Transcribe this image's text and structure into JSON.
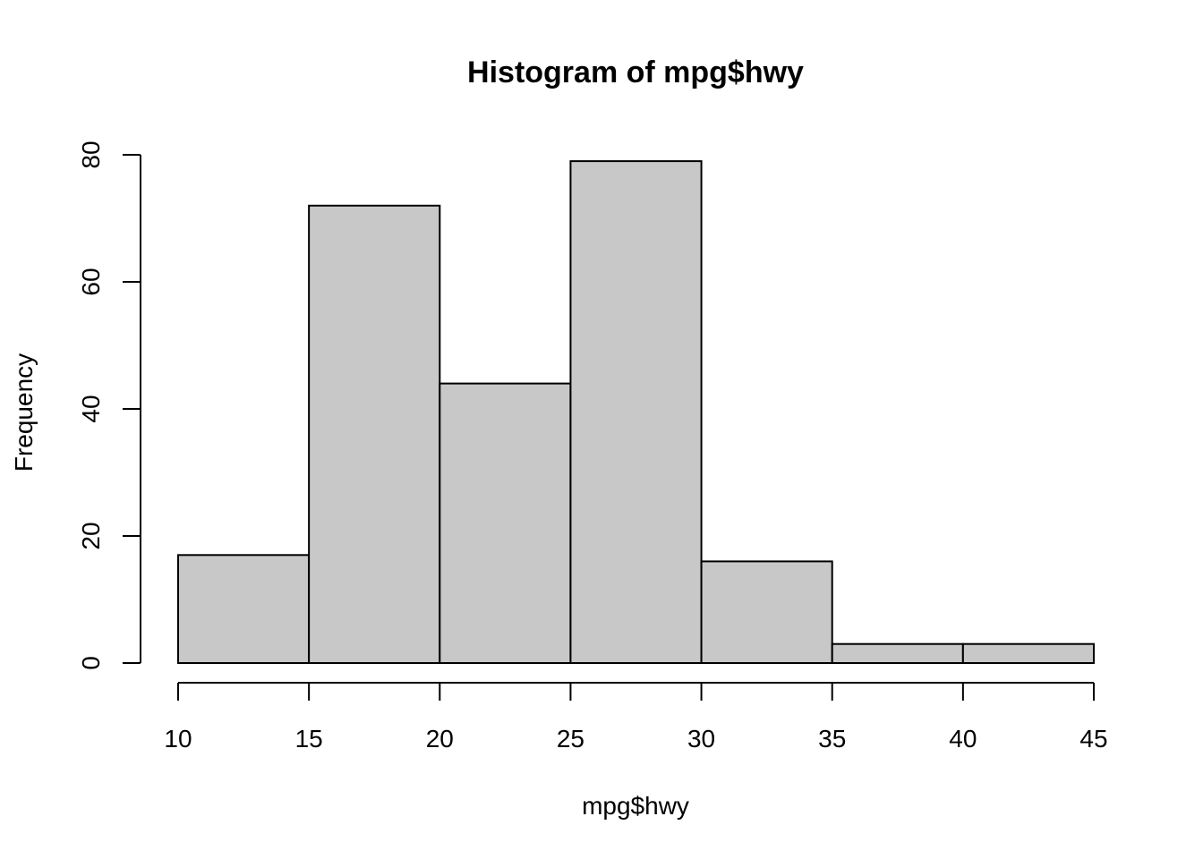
{
  "chart_data": {
    "type": "bar",
    "title": "Histogram of mpg$hwy",
    "xlabel": "mpg$hwy",
    "ylabel": "Frequency",
    "bins": [
      {
        "start": 10,
        "end": 15,
        "value": 17
      },
      {
        "start": 15,
        "end": 20,
        "value": 72
      },
      {
        "start": 20,
        "end": 25,
        "value": 44
      },
      {
        "start": 25,
        "end": 30,
        "value": 79
      },
      {
        "start": 30,
        "end": 35,
        "value": 16
      },
      {
        "start": 35,
        "end": 40,
        "value": 3
      },
      {
        "start": 40,
        "end": 45,
        "value": 3
      }
    ],
    "x_ticks": [
      10,
      15,
      20,
      25,
      30,
      35,
      40,
      45
    ],
    "y_ticks": [
      0,
      20,
      40,
      60,
      80
    ],
    "xlim": [
      10,
      45
    ],
    "ylim": [
      0,
      80
    ],
    "grid": false,
    "legend": "none",
    "bar_color": "#c8c8c8",
    "stroke_color": "#000000"
  }
}
